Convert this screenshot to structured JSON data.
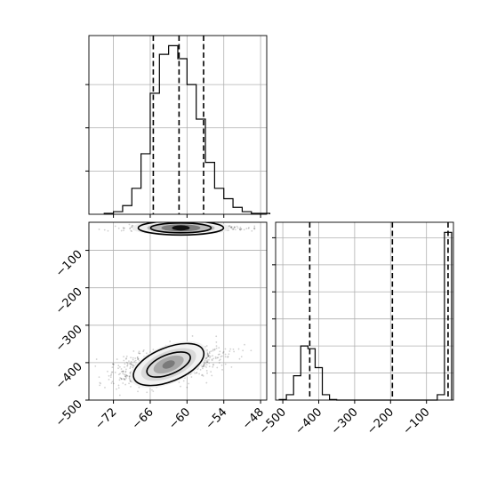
{
  "chart_data": [
    {
      "panel": "histogram-param-1",
      "type": "bar",
      "title": "",
      "xlabel": "",
      "ylabel": "",
      "x_bin_edges": [
        -73.5,
        -72,
        -70.5,
        -69,
        -67.5,
        -66,
        -64.5,
        -63,
        -61.5,
        -60,
        -58.5,
        -57,
        -55.5,
        -54,
        -52.5,
        -51,
        -49.5,
        -48,
        -46.5
      ],
      "counts": [
        1,
        3,
        10,
        30,
        70,
        140,
        185,
        195,
        180,
        150,
        110,
        60,
        30,
        18,
        8,
        3,
        1,
        1
      ],
      "quantiles_dashed": [
        -65.5,
        -61.3,
        -57.3
      ],
      "xlim": [
        -76,
        -47
      ],
      "xticks": [
        -72,
        -66,
        -60,
        -54,
        -48
      ],
      "grid": true
    },
    {
      "panel": "histogram-param-2",
      "type": "bar",
      "title": "",
      "xlabel": "",
      "ylabel": "",
      "x_bin_edges": [
        -510,
        -490,
        -470,
        -450,
        -430,
        -410,
        -390,
        -370,
        -350,
        -330,
        -310,
        -290,
        -270,
        -250,
        -230,
        -210,
        -190,
        -170,
        -150,
        -130,
        -110,
        -90,
        -70,
        -50,
        -30
      ],
      "counts": [
        1,
        10,
        45,
        100,
        95,
        60,
        10,
        1,
        0,
        0,
        0,
        0,
        0,
        0,
        0,
        0,
        0,
        0,
        0,
        0,
        0,
        0,
        10,
        310
      ],
      "quantiles_dashed": [
        -425,
        -195,
        -40
      ],
      "xlim": [
        -520,
        -25
      ],
      "xticks": [
        -500,
        -400,
        -300,
        -200,
        -100
      ],
      "grid": true
    },
    {
      "panel": "2d-density",
      "type": "scatter",
      "title": "",
      "xlabel": "",
      "ylabel": "",
      "xlim": [
        -76,
        -47
      ],
      "ylim": [
        -500,
        -25
      ],
      "xticks": [
        -72,
        -66,
        -60,
        -54,
        -48
      ],
      "yticks": [
        -100,
        -200,
        -300,
        -400,
        -500
      ],
      "clusters": [
        {
          "x_center": -63,
          "y_center": -405,
          "x_spread": 4.2,
          "y_spread": 24,
          "correlation": 0.5
        },
        {
          "x_center": -61,
          "y_center": -40,
          "x_spread": 4.5,
          "y_spread": 4,
          "correlation": 0
        }
      ],
      "grid": true
    }
  ]
}
